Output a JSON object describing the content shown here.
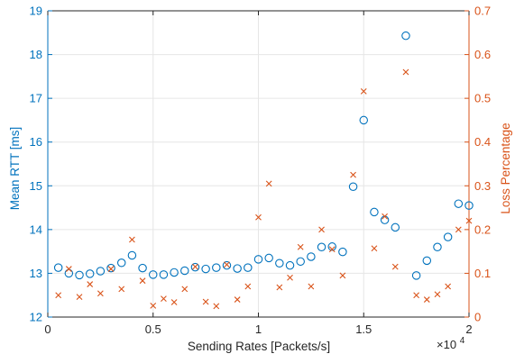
{
  "chart_data": {
    "type": "scatter",
    "title": "",
    "xlabel": "Sending Rates [Packets/s]",
    "x_exponent_label": {
      "base": "×10",
      "exp": "4"
    },
    "ylabel_left": "Mean RTT [ms]",
    "ylabel_right": "Loss Percentage",
    "xlim": [
      0,
      20000
    ],
    "ylim_left": [
      12,
      19
    ],
    "ylim_right": [
      0,
      0.7
    ],
    "x_ticks": [
      0,
      5000,
      10000,
      15000,
      20000
    ],
    "x_tick_labels": [
      "0",
      "0.5",
      "1",
      "1.5",
      "2"
    ],
    "y_left_ticks": [
      12,
      13,
      14,
      15,
      16,
      17,
      18,
      19
    ],
    "y_left_tick_labels": [
      "12",
      "13",
      "14",
      "15",
      "16",
      "17",
      "18",
      "19"
    ],
    "y_right_ticks": [
      0,
      0.1,
      0.2,
      0.3,
      0.4,
      0.5,
      0.6,
      0.7
    ],
    "y_right_tick_labels": [
      "0",
      "0.1",
      "0.2",
      "0.3",
      "0.4",
      "0.5",
      "0.6",
      "0.7"
    ],
    "grid": true,
    "colors": {
      "left": "#0072BD",
      "right": "#D95319",
      "grid": "#e6e6e6",
      "axis": "#262626"
    },
    "series": [
      {
        "axis": "left",
        "marker": "circle",
        "points": [
          [
            500,
            13.13
          ],
          [
            1000,
            13.0
          ],
          [
            1500,
            12.96
          ],
          [
            2000,
            12.99
          ],
          [
            2500,
            13.05
          ],
          [
            3000,
            13.12
          ],
          [
            3500,
            13.24
          ],
          [
            4000,
            13.41
          ],
          [
            4500,
            13.12
          ],
          [
            5000,
            12.97
          ],
          [
            5500,
            12.97
          ],
          [
            6000,
            13.02
          ],
          [
            6500,
            13.06
          ],
          [
            7000,
            13.14
          ],
          [
            7500,
            13.1
          ],
          [
            8000,
            13.13
          ],
          [
            8500,
            13.18
          ],
          [
            9000,
            13.11
          ],
          [
            9500,
            13.13
          ],
          [
            10000,
            13.32
          ],
          [
            10500,
            13.35
          ],
          [
            11000,
            13.23
          ],
          [
            11500,
            13.18
          ],
          [
            12000,
            13.27
          ],
          [
            12500,
            13.38
          ],
          [
            13000,
            13.6
          ],
          [
            13500,
            13.61
          ],
          [
            14000,
            13.49
          ],
          [
            14500,
            14.98
          ],
          [
            15000,
            16.5
          ],
          [
            15500,
            14.4
          ],
          [
            16000,
            14.22
          ],
          [
            16500,
            14.05
          ],
          [
            17000,
            18.43
          ],
          [
            17500,
            12.95
          ],
          [
            18000,
            13.29
          ],
          [
            18500,
            13.6
          ],
          [
            19000,
            13.83
          ],
          [
            19500,
            14.59
          ],
          [
            20000,
            14.55
          ]
        ]
      },
      {
        "axis": "right",
        "marker": "x",
        "points": [
          [
            500,
            0.05
          ],
          [
            1000,
            0.11
          ],
          [
            1500,
            0.046
          ],
          [
            2000,
            0.075
          ],
          [
            2500,
            0.054
          ],
          [
            3000,
            0.11
          ],
          [
            3500,
            0.064
          ],
          [
            4000,
            0.177
          ],
          [
            4500,
            0.083
          ],
          [
            5000,
            0.026
          ],
          [
            5500,
            0.042
          ],
          [
            6000,
            0.034
          ],
          [
            6500,
            0.064
          ],
          [
            7000,
            0.115
          ],
          [
            7500,
            0.035
          ],
          [
            8000,
            0.025
          ],
          [
            8500,
            0.12
          ],
          [
            9000,
            0.04
          ],
          [
            9500,
            0.07
          ],
          [
            10000,
            0.228
          ],
          [
            10500,
            0.305
          ],
          [
            11000,
            0.068
          ],
          [
            11500,
            0.09
          ],
          [
            12000,
            0.16
          ],
          [
            12500,
            0.07
          ],
          [
            13000,
            0.2
          ],
          [
            13500,
            0.155
          ],
          [
            14000,
            0.095
          ],
          [
            14500,
            0.325
          ],
          [
            15000,
            0.516
          ],
          [
            15500,
            0.157
          ],
          [
            16000,
            0.23
          ],
          [
            16500,
            0.115
          ],
          [
            17000,
            0.56
          ],
          [
            17500,
            0.05
          ],
          [
            18000,
            0.04
          ],
          [
            18500,
            0.052
          ],
          [
            19000,
            0.07
          ],
          [
            19500,
            0.2
          ],
          [
            20000,
            0.22
          ]
        ]
      }
    ]
  }
}
